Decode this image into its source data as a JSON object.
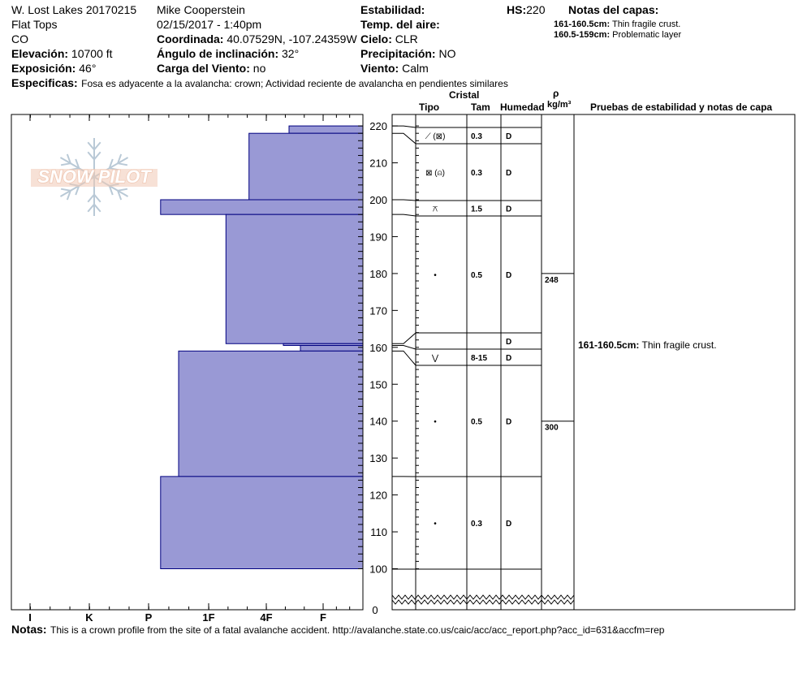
{
  "header": {
    "col1": [
      "W. Lost Lakes 20170215",
      "Flat Tops",
      "CO"
    ],
    "elevation_label": "Elevación:",
    "elevation_value": "10700 ft",
    "aspect_label": "Exposición:",
    "aspect_value": "46°",
    "observer": "Mike Cooperstein",
    "datetime": "02/15/2017 - 1:40pm",
    "coord_label": "Coordinada:",
    "coord_value": "40.07529N, -107.24359W",
    "slope_label": "Ángulo de inclinación:",
    "slope_value": "32°",
    "wind_load_label": "Carga del Viento:",
    "wind_load_value": "no",
    "stability_label": "Estabilidad:",
    "stability_value": "",
    "air_temp_label": "Temp. del aire:",
    "air_temp_value": "",
    "sky_label": "Cielo:",
    "sky_value": "CLR",
    "precip_label": "Precipitación:",
    "precip_value": "NO",
    "wind_label": "Viento:",
    "wind_value": "Calm",
    "hs_label": "HS:",
    "hs_value": "220",
    "specifics_label": "Especificas:",
    "specifics_value": "Fosa es adyacente a la avalancha: crown;  Actividad reciente de avalancha en pendientes similares"
  },
  "layer_notes": {
    "title": "Notas del capas:",
    "items": [
      {
        "range": "161-160.5cm:",
        "text": "Thin fragile crust."
      },
      {
        "range": "160.5-159cm:",
        "text": "Problematic layer"
      }
    ]
  },
  "logo": {
    "text": "SNOW PILOT"
  },
  "table_headers": {
    "cristal": "Cristal",
    "tipo": "Tipo",
    "tam": "Tam",
    "humedad": "Humedad",
    "rho": "ρ",
    "density_unit": "kg/m³",
    "tests": "Pruebas de estabilidad y notas de capa"
  },
  "stability_note": {
    "range": "161-160.5cm:",
    "text": "Thin fragile crust."
  },
  "notes": {
    "label": "Notas:",
    "text": "This is a crown profile from the site of a fatal avalanche accident. http://avalanche.state.co.us/caic/acc/acc_report.php?acc_id=631&accfm=rep"
  },
  "colors": {
    "bar_fill": "#9999d5",
    "bar_stroke": "#000080",
    "logo": "#f0c8b4",
    "snowflake": "#b9c9d6"
  },
  "chart_data": {
    "type": "bar",
    "orientation": "horizontal",
    "title": "",
    "y_axis": {
      "min": 0,
      "max": 220,
      "ticks": [
        100,
        110,
        120,
        130,
        140,
        150,
        160,
        170,
        180,
        190,
        200,
        210,
        220
      ],
      "break_tick": 0
    },
    "x_axis": {
      "tick_labels": [
        "I",
        "K",
        "P",
        "1F",
        "4F",
        "F"
      ],
      "reversed": true
    },
    "hardness_profile": [
      {
        "top": 220,
        "bottom": 218,
        "hardness": 1.6
      },
      {
        "top": 218,
        "bottom": 200,
        "hardness": 2.3
      },
      {
        "top": 200,
        "bottom": 196,
        "hardness": 3.8
      },
      {
        "top": 196,
        "bottom": 161,
        "hardness": 2.7
      },
      {
        "top": 161,
        "bottom": 160.5,
        "hardness": 1.7
      },
      {
        "top": 160.5,
        "bottom": 159,
        "hardness": 1.4
      },
      {
        "top": 159,
        "bottom": 125,
        "hardness": 3.5
      },
      {
        "top": 125,
        "bottom": 100,
        "hardness": 3.8
      }
    ],
    "layers": [
      {
        "top": 220,
        "bottom": 218,
        "type": "⟋ (⊠)",
        "size": "0.3",
        "moisture": "D"
      },
      {
        "top": 218,
        "bottom": 200,
        "type": "⊠ (⍝)",
        "size": "0.3",
        "moisture": "D"
      },
      {
        "top": 200,
        "bottom": 196,
        "type": "⚻",
        "size": "1.5",
        "moisture": "D"
      },
      {
        "top": 196,
        "bottom": 161,
        "type": "•",
        "size": "0.5",
        "moisture": "D"
      },
      {
        "top": 161,
        "bottom": 160.5,
        "type": "",
        "size": "",
        "moisture": "D"
      },
      {
        "top": 160.5,
        "bottom": 159,
        "type": "⋁",
        "size": "8-15",
        "moisture": "D"
      },
      {
        "top": 159,
        "bottom": 125,
        "type": "•",
        "size": "0.5",
        "moisture": "D"
      },
      {
        "top": 125,
        "bottom": 100,
        "type": "•",
        "size": "0.3",
        "moisture": "D"
      }
    ],
    "density": [
      {
        "height": 180,
        "value": "248"
      },
      {
        "height": 140,
        "value": "300"
      }
    ]
  }
}
